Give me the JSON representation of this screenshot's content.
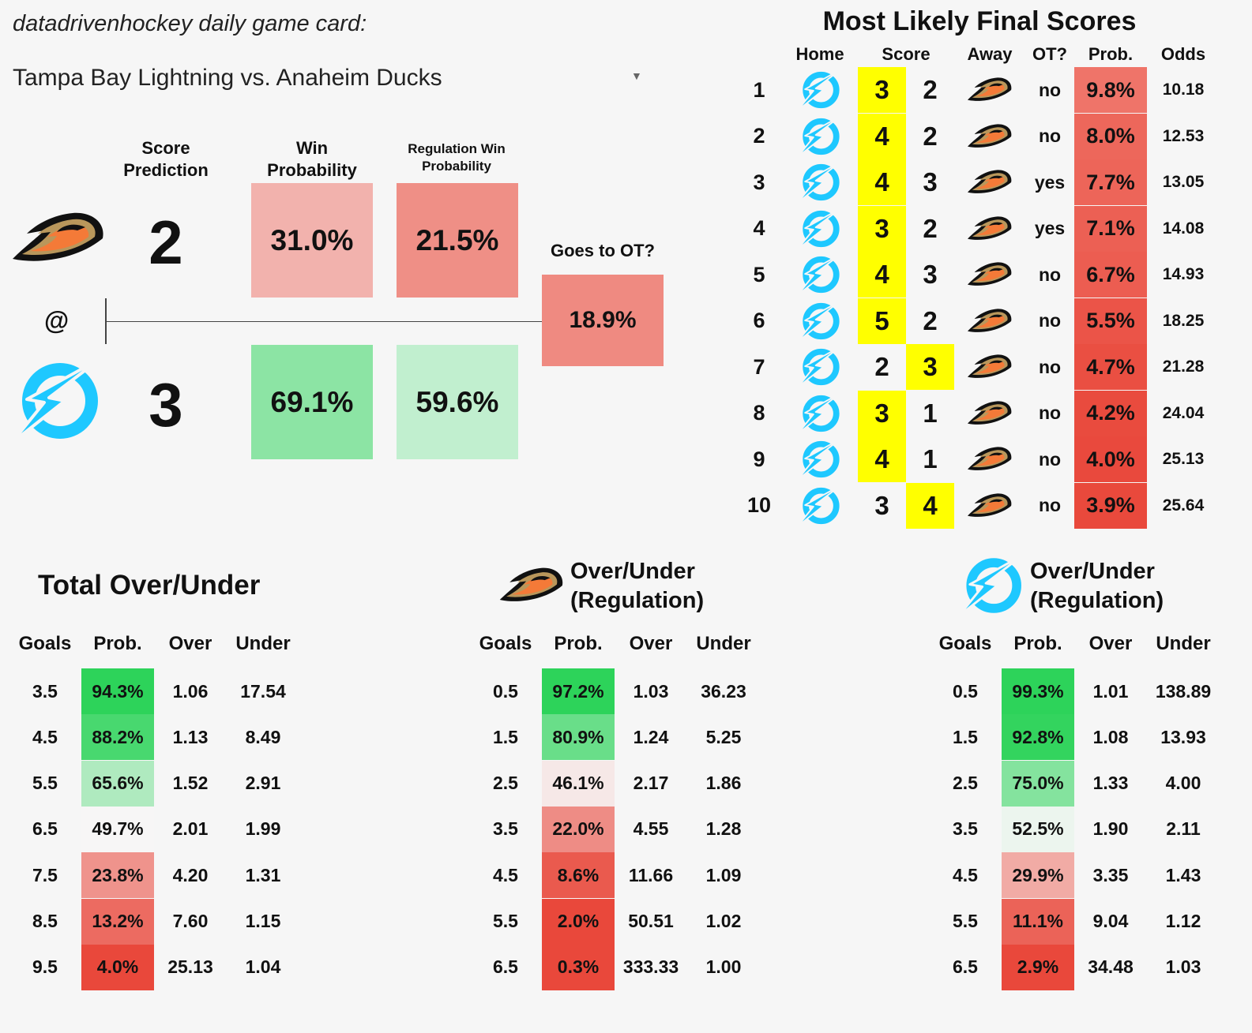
{
  "header": {
    "caption": "datadrivenhockey daily game card:",
    "game": "Tampa Bay Lightning vs. Anaheim Ducks"
  },
  "prediction": {
    "score_header": [
      "Score",
      "Prediction"
    ],
    "win_header": [
      "Win",
      "Probability"
    ],
    "reg_header": [
      "Regulation Win",
      "Probability"
    ],
    "at_label": "@",
    "ot_header": "Goes to OT?",
    "ot_value": "18.9%",
    "away": {
      "team": "ducks",
      "score": "2",
      "win": "31.0%",
      "reg": "21.5%"
    },
    "home": {
      "team": "lightning",
      "score": "3",
      "win": "69.1%",
      "reg": "59.6%"
    }
  },
  "likely_scores": {
    "title": "Most Likely Final Scores",
    "headers": {
      "home": "Home",
      "score": "Score",
      "away": "Away",
      "ot": "OT?",
      "prob": "Prob.",
      "odds": "Odds"
    },
    "rows": [
      {
        "rank": "1",
        "home": "3",
        "away": "2",
        "ot": "no",
        "prob": "9.8%",
        "odds": "10.18"
      },
      {
        "rank": "2",
        "home": "4",
        "away": "2",
        "ot": "no",
        "prob": "8.0%",
        "odds": "12.53"
      },
      {
        "rank": "3",
        "home": "4",
        "away": "3",
        "ot": "yes",
        "prob": "7.7%",
        "odds": "13.05"
      },
      {
        "rank": "4",
        "home": "3",
        "away": "2",
        "ot": "yes",
        "prob": "7.1%",
        "odds": "14.08"
      },
      {
        "rank": "5",
        "home": "4",
        "away": "3",
        "ot": "no",
        "prob": "6.7%",
        "odds": "14.93"
      },
      {
        "rank": "6",
        "home": "5",
        "away": "2",
        "ot": "no",
        "prob": "5.5%",
        "odds": "18.25"
      },
      {
        "rank": "7",
        "home": "2",
        "away": "3",
        "ot": "no",
        "prob": "4.7%",
        "odds": "21.28"
      },
      {
        "rank": "8",
        "home": "3",
        "away": "1",
        "ot": "no",
        "prob": "4.2%",
        "odds": "24.04"
      },
      {
        "rank": "9",
        "home": "4",
        "away": "1",
        "ot": "no",
        "prob": "4.0%",
        "odds": "25.13"
      },
      {
        "rank": "10",
        "home": "3",
        "away": "4",
        "ot": "no",
        "prob": "3.9%",
        "odds": "25.64"
      }
    ]
  },
  "over_under": {
    "headers": {
      "goals": "Goals",
      "prob": "Prob.",
      "over": "Over",
      "under": "Under"
    },
    "total": {
      "title": "Total Over/Under",
      "rows": [
        {
          "goals": "3.5",
          "prob": "94.3%",
          "over": "1.06",
          "under": "17.54"
        },
        {
          "goals": "4.5",
          "prob": "88.2%",
          "over": "1.13",
          "under": "8.49"
        },
        {
          "goals": "5.5",
          "prob": "65.6%",
          "over": "1.52",
          "under": "2.91"
        },
        {
          "goals": "6.5",
          "prob": "49.7%",
          "over": "2.01",
          "under": "1.99"
        },
        {
          "goals": "7.5",
          "prob": "23.8%",
          "over": "4.20",
          "under": "1.31"
        },
        {
          "goals": "8.5",
          "prob": "13.2%",
          "over": "7.60",
          "under": "1.15"
        },
        {
          "goals": "9.5",
          "prob": "4.0%",
          "over": "25.13",
          "under": "1.04"
        }
      ]
    },
    "away": {
      "title": [
        "Over/Under",
        "(Regulation)"
      ],
      "rows": [
        {
          "goals": "0.5",
          "prob": "97.2%",
          "over": "1.03",
          "under": "36.23"
        },
        {
          "goals": "1.5",
          "prob": "80.9%",
          "over": "1.24",
          "under": "5.25"
        },
        {
          "goals": "2.5",
          "prob": "46.1%",
          "over": "2.17",
          "under": "1.86"
        },
        {
          "goals": "3.5",
          "prob": "22.0%",
          "over": "4.55",
          "under": "1.28"
        },
        {
          "goals": "4.5",
          "prob": "8.6%",
          "over": "11.66",
          "under": "1.09"
        },
        {
          "goals": "5.5",
          "prob": "2.0%",
          "over": "50.51",
          "under": "1.02"
        },
        {
          "goals": "6.5",
          "prob": "0.3%",
          "over": "333.33",
          "under": "1.00"
        }
      ]
    },
    "home": {
      "title": [
        "Over/Under",
        "(Regulation)"
      ],
      "rows": [
        {
          "goals": "0.5",
          "prob": "99.3%",
          "over": "1.01",
          "under": "138.89"
        },
        {
          "goals": "1.5",
          "prob": "92.8%",
          "over": "1.08",
          "under": "13.93"
        },
        {
          "goals": "2.5",
          "prob": "75.0%",
          "over": "1.33",
          "under": "4.00"
        },
        {
          "goals": "3.5",
          "prob": "52.5%",
          "over": "1.90",
          "under": "2.11"
        },
        {
          "goals": "4.5",
          "prob": "29.9%",
          "over": "3.35",
          "under": "1.43"
        },
        {
          "goals": "5.5",
          "prob": "11.1%",
          "over": "9.04",
          "under": "1.12"
        },
        {
          "goals": "6.5",
          "prob": "2.9%",
          "over": "34.48",
          "under": "1.03"
        }
      ]
    }
  },
  "colors": {
    "highlight": "#ffff00",
    "lightning": "#1ec8ff",
    "ducks_gold": "#b9975b",
    "ducks_orange": "#f47a38",
    "green_strong": "#2dd35a",
    "red_strong": "#e9483b"
  }
}
